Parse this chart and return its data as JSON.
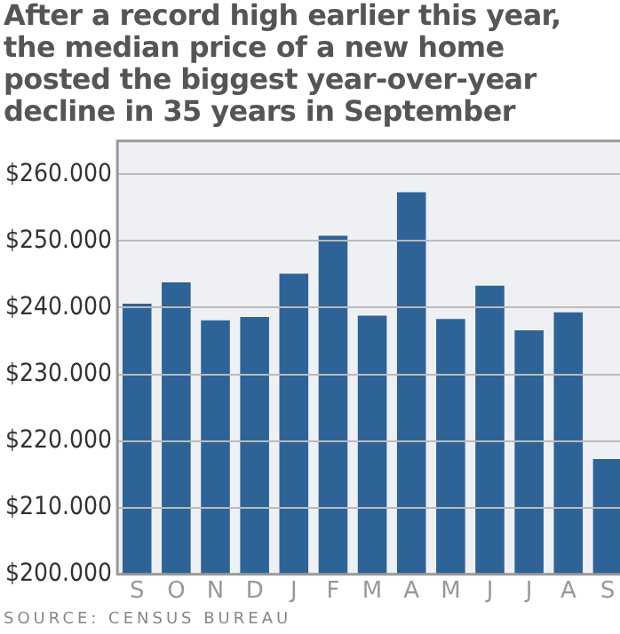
{
  "chart_data": {
    "type": "bar",
    "title": "After a record high earlier this year, the median price of a new home posted the biggest year-over-year decline in 35 years in September",
    "categories": [
      "S",
      "O",
      "N",
      "D",
      "J",
      "F",
      "M",
      "A",
      "M",
      "J",
      "J",
      "A",
      "S"
    ],
    "values": [
      240600,
      243800,
      238100,
      238600,
      245100,
      250800,
      238800,
      257300,
      238300,
      243300,
      236600,
      239300,
      217300
    ],
    "color": "#2e6398",
    "ylim": [
      200000,
      265000
    ],
    "yticks": [
      {
        "value": 200000,
        "label": "$200.000"
      },
      {
        "value": 210000,
        "label": "$210.000"
      },
      {
        "value": 220000,
        "label": "$220.000"
      },
      {
        "value": 230000,
        "label": "$230.000"
      },
      {
        "value": 240000,
        "label": "$240.000"
      },
      {
        "value": 250000,
        "label": "$250.000"
      },
      {
        "value": 260000,
        "label": "$260.000"
      }
    ],
    "grid": "y",
    "annotations": [
      "SOURCE: CENSUS BUREAU"
    ]
  }
}
